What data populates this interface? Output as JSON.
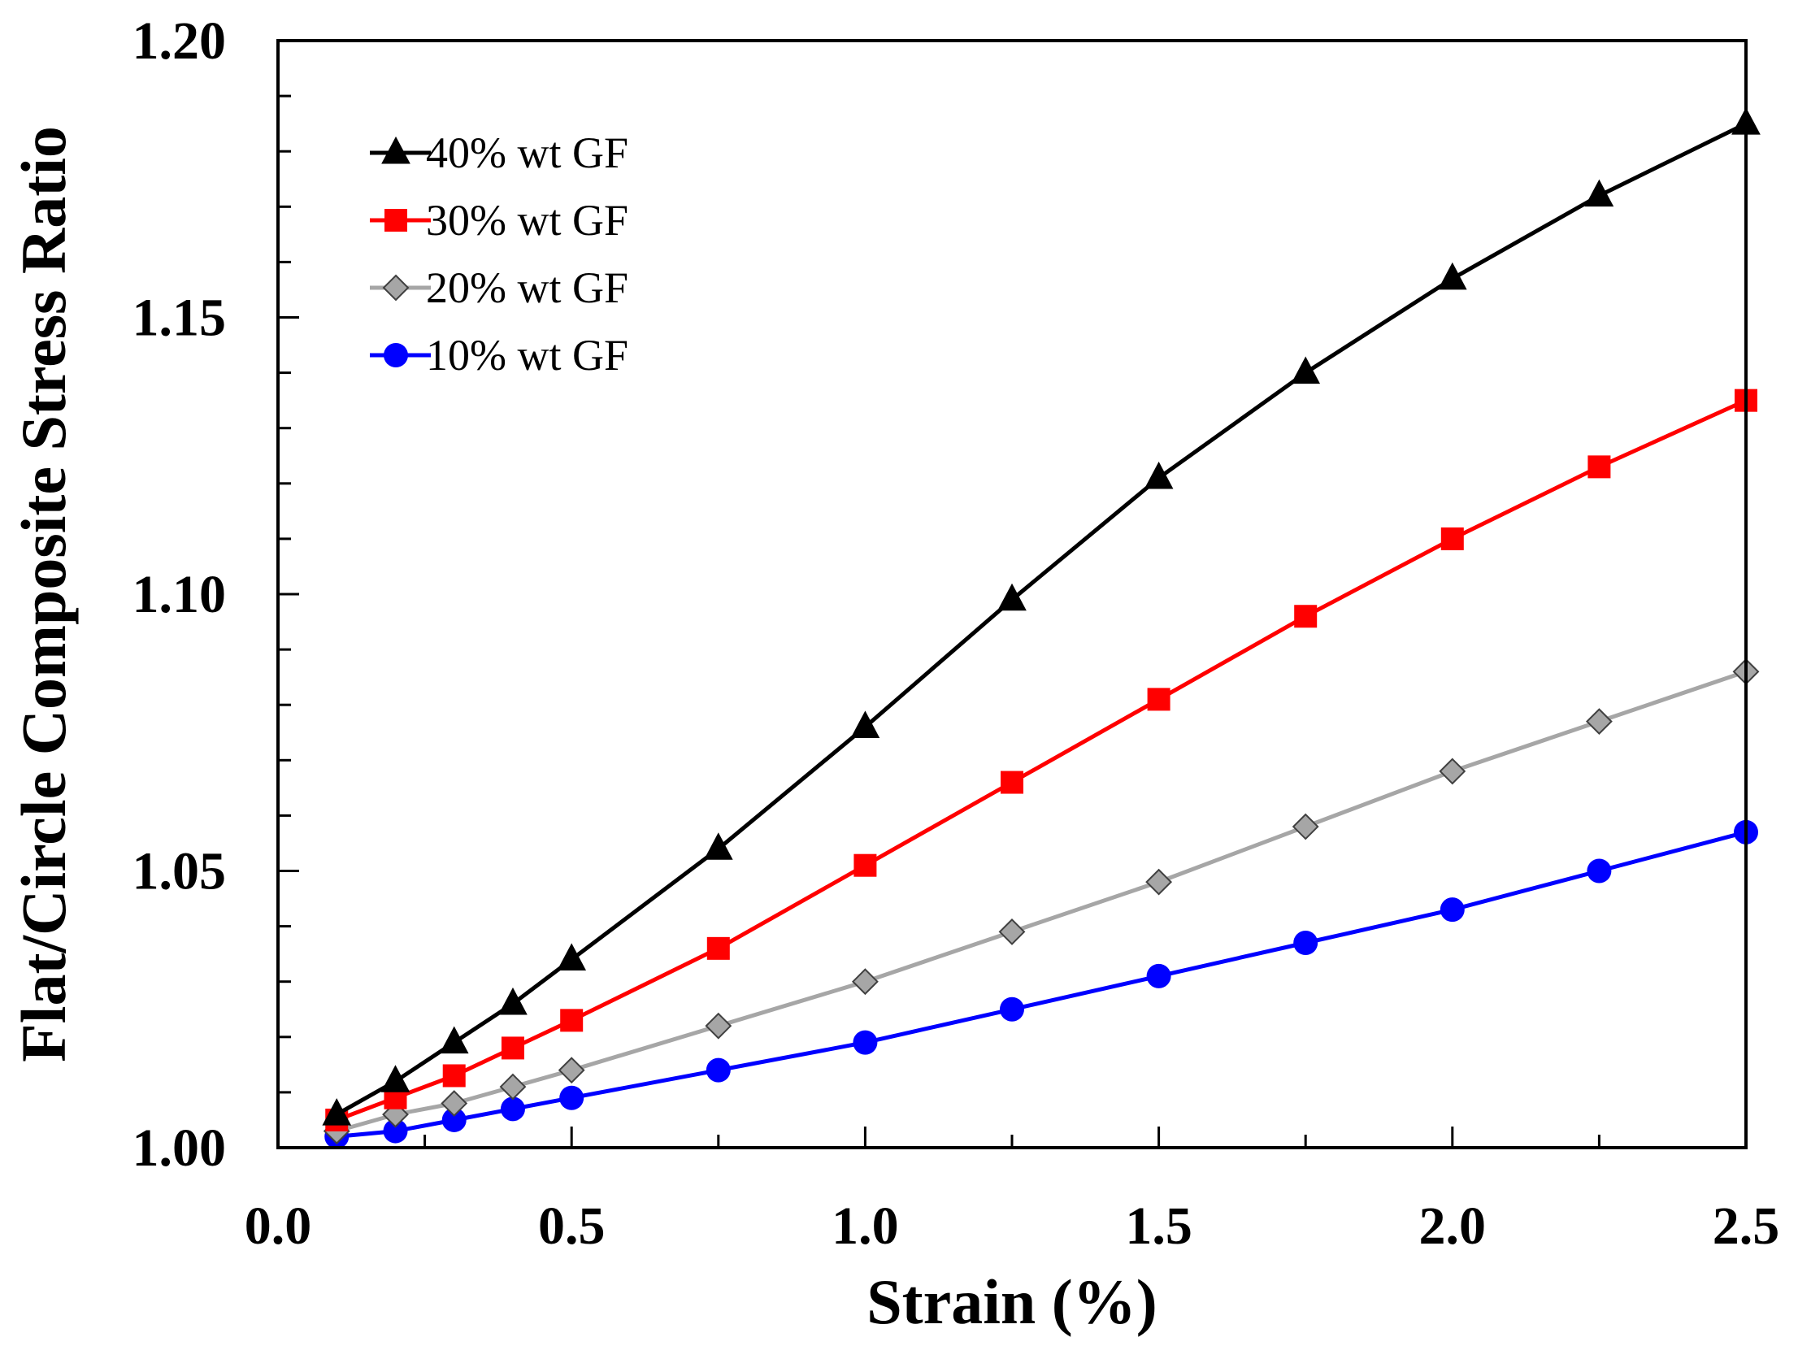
{
  "chart_data": {
    "type": "line",
    "title": "",
    "xlabel": "Strain (%)",
    "ylabel": "Flat/Circle Composite Stress Ratio",
    "xlim": [
      0.0,
      2.5
    ],
    "ylim": [
      1.0,
      1.2
    ],
    "x_ticks": [
      "0.0",
      "0.5",
      "1.0",
      "1.5",
      "2.0",
      "2.5"
    ],
    "y_ticks": [
      "1.00",
      "1.05",
      "1.10",
      "1.15",
      "1.20"
    ],
    "x_minor_step": 0.25,
    "y_minor_step": 0.01,
    "grid": false,
    "legend_position": "top-left",
    "x": [
      0.1,
      0.2,
      0.3,
      0.4,
      0.5,
      0.75,
      1.0,
      1.25,
      1.5,
      1.75,
      2.0,
      2.25,
      2.5
    ],
    "series": [
      {
        "name": "40% wt GF",
        "color": "#000000",
        "marker": "triangle",
        "values": [
          1.006,
          1.012,
          1.019,
          1.026,
          1.034,
          1.054,
          1.076,
          1.099,
          1.121,
          1.14,
          1.157,
          1.172,
          1.185
        ]
      },
      {
        "name": "30% wt GF",
        "color": "#ff0000",
        "marker": "square",
        "values": [
          1.005,
          1.009,
          1.013,
          1.018,
          1.023,
          1.036,
          1.051,
          1.066,
          1.081,
          1.096,
          1.11,
          1.123,
          1.135
        ]
      },
      {
        "name": "20% wt GF",
        "color": "#a6a6a6",
        "marker": "diamond",
        "values": [
          1.003,
          1.006,
          1.008,
          1.011,
          1.014,
          1.022,
          1.03,
          1.039,
          1.048,
          1.058,
          1.068,
          1.077,
          1.086
        ]
      },
      {
        "name": "10% wt GF",
        "color": "#0000ff",
        "marker": "circle",
        "values": [
          1.002,
          1.003,
          1.005,
          1.007,
          1.009,
          1.014,
          1.019,
          1.025,
          1.031,
          1.037,
          1.043,
          1.05,
          1.057
        ]
      }
    ]
  }
}
